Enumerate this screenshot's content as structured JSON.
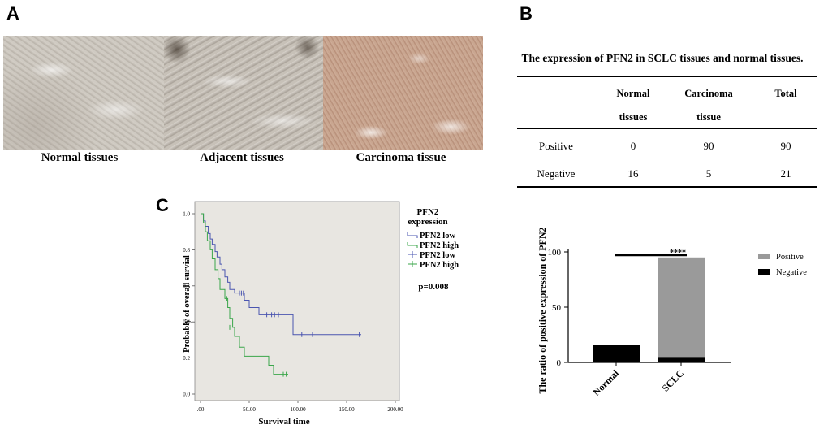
{
  "panels": {
    "a": "A",
    "b": "B",
    "c": "C"
  },
  "panel_a": {
    "captions": [
      "Normal tissues",
      "Adjacent tissues",
      "Carcinoma tissue"
    ]
  },
  "panel_b": {
    "table_title": "The expression of PFN2 in SCLC tissues and normal tissues.",
    "headers": {
      "normal_line1": "Normal",
      "normal_line2": "tissues",
      "carcinoma_line1": "Carcinoma",
      "carcinoma_line2": "tissue",
      "total": "Total"
    },
    "rows": [
      {
        "label": "Positive",
        "normal": "0",
        "carcinoma": "90",
        "total": "90"
      },
      {
        "label": "Negative",
        "normal": "16",
        "carcinoma": "5",
        "total": "21"
      }
    ]
  },
  "chart_data": [
    {
      "type": "line",
      "title": "",
      "xlabel": "Survival time",
      "ylabel": "Probably of overall survial",
      "xlim": [
        0,
        200
      ],
      "ylim": [
        0,
        1.0
      ],
      "x_ticks": [
        ".00",
        "50.00",
        "100.00",
        "150.00",
        "200.00"
      ],
      "y_ticks": [
        "0.0",
        "0.2",
        "0.4",
        "0.6",
        "0.8",
        "1.0"
      ],
      "legend_title_line1": "PFN2",
      "legend_title_line2": "expression",
      "legend": [
        "PFN2 low",
        "PFN2 high",
        "PFN2 low",
        "PFN2 high"
      ],
      "annotation": "p=0.008",
      "series": [
        {
          "name": "PFN2 low",
          "color": "#4a55b0",
          "x": [
            0,
            3,
            5,
            8,
            10,
            12,
            15,
            17,
            20,
            22,
            25,
            28,
            30,
            35,
            45,
            50,
            60,
            95,
            165
          ],
          "y": [
            1.0,
            0.96,
            0.93,
            0.89,
            0.86,
            0.83,
            0.79,
            0.76,
            0.72,
            0.69,
            0.65,
            0.62,
            0.58,
            0.56,
            0.52,
            0.48,
            0.44,
            0.33,
            0.33
          ],
          "censored_x": [
            40,
            42,
            44,
            68,
            73,
            76,
            80,
            104,
            115,
            163
          ],
          "censored_y": [
            0.56,
            0.56,
            0.56,
            0.44,
            0.44,
            0.44,
            0.44,
            0.33,
            0.33,
            0.33
          ]
        },
        {
          "name": "PFN2 high",
          "color": "#3aa64a",
          "x": [
            0,
            3,
            5,
            7,
            10,
            12,
            15,
            18,
            20,
            25,
            28,
            30,
            33,
            35,
            40,
            45,
            70,
            75,
            90
          ],
          "y": [
            1.0,
            0.95,
            0.9,
            0.85,
            0.8,
            0.75,
            0.69,
            0.64,
            0.58,
            0.53,
            0.48,
            0.42,
            0.37,
            0.32,
            0.26,
            0.21,
            0.16,
            0.11,
            0.11
          ],
          "censored_x": [
            27,
            30,
            85,
            88
          ],
          "censored_y": [
            0.53,
            0.37,
            0.11,
            0.11
          ]
        }
      ]
    },
    {
      "type": "bar",
      "stacked": true,
      "categories": [
        "Normal",
        "SCLC"
      ],
      "series": [
        {
          "name": "Negative",
          "color": "#000000",
          "values": [
            16,
            5
          ]
        },
        {
          "name": "Positive",
          "color": "#9a9a9a",
          "values": [
            0,
            90
          ]
        }
      ],
      "ylabel": "The ratio of positive expression of PFN2",
      "ylim": [
        0,
        100
      ],
      "y_ticks": [
        "0",
        "50",
        "100"
      ],
      "significance": "****",
      "legend": [
        "Positive",
        "Negative"
      ]
    }
  ]
}
